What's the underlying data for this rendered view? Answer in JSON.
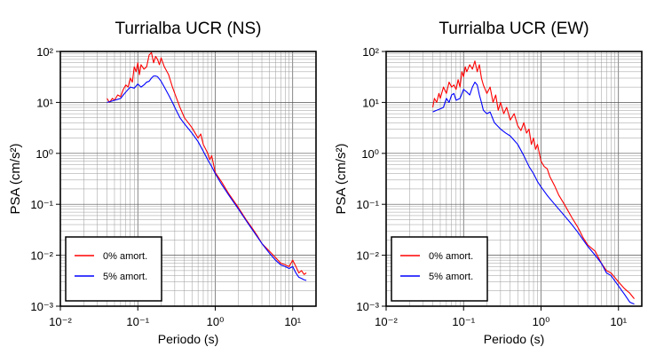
{
  "chart_data": [
    {
      "type": "line",
      "title": "Turrialba UCR (NS)",
      "xlabel": "Periodo (s)",
      "ylabel": "PSA (cm/s²)",
      "xscale": "log",
      "yscale": "log",
      "xlim": [
        0.01,
        20
      ],
      "ylim": [
        0.001,
        100
      ],
      "x_ticks": [
        "10⁻²",
        "10⁻¹",
        "10⁰",
        "10¹"
      ],
      "y_ticks": [
        "10⁻³",
        "10⁻²",
        "10⁻¹",
        "10⁰",
        "10¹",
        "10²"
      ],
      "grid": true,
      "legend_position": "bottom-left",
      "series": [
        {
          "name": "0% amort.",
          "color": "#ff0000",
          "points": [
            [
              0.04,
              12
            ],
            [
              0.043,
              10
            ],
            [
              0.047,
              12
            ],
            [
              0.05,
              11
            ],
            [
              0.055,
              14
            ],
            [
              0.06,
              13
            ],
            [
              0.065,
              18
            ],
            [
              0.07,
              22
            ],
            [
              0.075,
              20
            ],
            [
              0.08,
              30
            ],
            [
              0.085,
              25
            ],
            [
              0.09,
              50
            ],
            [
              0.095,
              40
            ],
            [
              0.1,
              60
            ],
            [
              0.105,
              35
            ],
            [
              0.11,
              55
            ],
            [
              0.12,
              45
            ],
            [
              0.13,
              50
            ],
            [
              0.14,
              85
            ],
            [
              0.15,
              95
            ],
            [
              0.16,
              60
            ],
            [
              0.17,
              80
            ],
            [
              0.18,
              70
            ],
            [
              0.19,
              55
            ],
            [
              0.2,
              75
            ],
            [
              0.22,
              50
            ],
            [
              0.25,
              35
            ],
            [
              0.28,
              20
            ],
            [
              0.3,
              15
            ],
            [
              0.35,
              8
            ],
            [
              0.4,
              5
            ],
            [
              0.5,
              3.2
            ],
            [
              0.55,
              2.5
            ],
            [
              0.6,
              2.0
            ],
            [
              0.65,
              2.4
            ],
            [
              0.7,
              1.5
            ],
            [
              0.8,
              1.0
            ],
            [
              0.85,
              0.75
            ],
            [
              0.9,
              0.9
            ],
            [
              1.0,
              0.42
            ],
            [
              1.2,
              0.28
            ],
            [
              1.5,
              0.16
            ],
            [
              2.0,
              0.085
            ],
            [
              2.5,
              0.05
            ],
            [
              3.0,
              0.034
            ],
            [
              3.5,
              0.024
            ],
            [
              4.0,
              0.017
            ],
            [
              5.0,
              0.012
            ],
            [
              6.0,
              0.009
            ],
            [
              7.0,
              0.007
            ],
            [
              8.0,
              0.0065
            ],
            [
              9.0,
              0.006
            ],
            [
              10,
              0.008
            ],
            [
              11,
              0.006
            ],
            [
              12,
              0.0045
            ],
            [
              13,
              0.005
            ],
            [
              14,
              0.0042
            ],
            [
              15,
              0.0045
            ]
          ]
        },
        {
          "name": "5% amort.",
          "color": "#0000ff",
          "points": [
            [
              0.04,
              10
            ],
            [
              0.045,
              10.5
            ],
            [
              0.05,
              11
            ],
            [
              0.055,
              11.5
            ],
            [
              0.06,
              12
            ],
            [
              0.065,
              14
            ],
            [
              0.07,
              16
            ],
            [
              0.075,
              18
            ],
            [
              0.08,
              20
            ],
            [
              0.09,
              19
            ],
            [
              0.1,
              23
            ],
            [
              0.11,
              20
            ],
            [
              0.12,
              22
            ],
            [
              0.13,
              25
            ],
            [
              0.14,
              26
            ],
            [
              0.15,
              30
            ],
            [
              0.16,
              33
            ],
            [
              0.17,
              33
            ],
            [
              0.18,
              32
            ],
            [
              0.2,
              26
            ],
            [
              0.22,
              20
            ],
            [
              0.25,
              14
            ],
            [
              0.28,
              10
            ],
            [
              0.3,
              8
            ],
            [
              0.35,
              5
            ],
            [
              0.4,
              3.8
            ],
            [
              0.5,
              2.5
            ],
            [
              0.6,
              1.7
            ],
            [
              0.7,
              1.1
            ],
            [
              0.8,
              0.75
            ],
            [
              0.9,
              0.55
            ],
            [
              1.0,
              0.4
            ],
            [
              1.2,
              0.25
            ],
            [
              1.5,
              0.15
            ],
            [
              2.0,
              0.08
            ],
            [
              2.5,
              0.048
            ],
            [
              3.0,
              0.032
            ],
            [
              4.0,
              0.017
            ],
            [
              5.0,
              0.011
            ],
            [
              6.0,
              0.008
            ],
            [
              7.0,
              0.0065
            ],
            [
              8.0,
              0.006
            ],
            [
              9.0,
              0.0055
            ],
            [
              10,
              0.006
            ],
            [
              11,
              0.0045
            ],
            [
              12,
              0.0037
            ],
            [
              13,
              0.0035
            ],
            [
              14,
              0.0033
            ],
            [
              15,
              0.0032
            ]
          ]
        }
      ]
    },
    {
      "type": "line",
      "title": "Turrialba UCR (EW)",
      "xlabel": "Periodo (s)",
      "ylabel": "PSA (cm/s²)",
      "xscale": "log",
      "yscale": "log",
      "xlim": [
        0.01,
        20
      ],
      "ylim": [
        0.001,
        100
      ],
      "x_ticks": [
        "10⁻²",
        "10⁻¹",
        "10⁰",
        "10¹"
      ],
      "y_ticks": [
        "10⁻³",
        "10⁻²",
        "10⁻¹",
        "10⁰",
        "10¹",
        "10²"
      ],
      "grid": true,
      "legend_position": "bottom-left",
      "series": [
        {
          "name": "0% amort.",
          "color": "#ff0000",
          "points": [
            [
              0.04,
              8
            ],
            [
              0.042,
              12
            ],
            [
              0.045,
              10
            ],
            [
              0.048,
              15
            ],
            [
              0.05,
              12
            ],
            [
              0.055,
              20
            ],
            [
              0.06,
              15
            ],
            [
              0.065,
              25
            ],
            [
              0.07,
              20
            ],
            [
              0.075,
              22
            ],
            [
              0.08,
              18
            ],
            [
              0.085,
              28
            ],
            [
              0.09,
              20
            ],
            [
              0.095,
              40
            ],
            [
              0.1,
              32
            ],
            [
              0.105,
              50
            ],
            [
              0.11,
              40
            ],
            [
              0.12,
              55
            ],
            [
              0.13,
              45
            ],
            [
              0.14,
              65
            ],
            [
              0.15,
              40
            ],
            [
              0.16,
              55
            ],
            [
              0.17,
              30
            ],
            [
              0.18,
              22
            ],
            [
              0.2,
              15
            ],
            [
              0.22,
              20
            ],
            [
              0.24,
              10
            ],
            [
              0.26,
              14
            ],
            [
              0.28,
              7
            ],
            [
              0.3,
              10
            ],
            [
              0.33,
              6
            ],
            [
              0.36,
              8
            ],
            [
              0.4,
              4.5
            ],
            [
              0.45,
              6
            ],
            [
              0.5,
              3.5
            ],
            [
              0.55,
              2.8
            ],
            [
              0.6,
              4
            ],
            [
              0.65,
              2.5
            ],
            [
              0.7,
              3
            ],
            [
              0.75,
              1.5
            ],
            [
              0.8,
              2.0
            ],
            [
              0.85,
              1.2
            ],
            [
              0.9,
              1.5
            ],
            [
              1.0,
              0.7
            ],
            [
              1.1,
              0.55
            ],
            [
              1.2,
              0.5
            ],
            [
              1.3,
              0.35
            ],
            [
              1.5,
              0.23
            ],
            [
              1.7,
              0.15
            ],
            [
              2.0,
              0.1
            ],
            [
              2.5,
              0.055
            ],
            [
              3.0,
              0.035
            ],
            [
              3.5,
              0.022
            ],
            [
              4.0,
              0.016
            ],
            [
              5.0,
              0.012
            ],
            [
              6.0,
              0.007
            ],
            [
              7.0,
              0.005
            ],
            [
              8.0,
              0.0045
            ],
            [
              10,
              0.003
            ],
            [
              12,
              0.0022
            ],
            [
              14,
              0.0018
            ],
            [
              16,
              0.0014
            ]
          ]
        },
        {
          "name": "5% amort.",
          "color": "#0000ff",
          "points": [
            [
              0.04,
              6.5
            ],
            [
              0.045,
              7
            ],
            [
              0.05,
              7.5
            ],
            [
              0.055,
              8
            ],
            [
              0.06,
              12
            ],
            [
              0.065,
              10
            ],
            [
              0.07,
              14
            ],
            [
              0.075,
              15
            ],
            [
              0.08,
              11
            ],
            [
              0.09,
              12
            ],
            [
              0.1,
              18
            ],
            [
              0.11,
              16
            ],
            [
              0.12,
              14
            ],
            [
              0.13,
              20
            ],
            [
              0.14,
              25
            ],
            [
              0.15,
              22
            ],
            [
              0.16,
              14
            ],
            [
              0.17,
              10
            ],
            [
              0.18,
              7
            ],
            [
              0.2,
              6
            ],
            [
              0.22,
              6.5
            ],
            [
              0.25,
              4
            ],
            [
              0.3,
              3.0
            ],
            [
              0.35,
              2.5
            ],
            [
              0.4,
              2.2
            ],
            [
              0.45,
              1.8
            ],
            [
              0.5,
              1.5
            ],
            [
              0.6,
              0.9
            ],
            [
              0.7,
              0.55
            ],
            [
              0.8,
              0.4
            ],
            [
              0.9,
              0.28
            ],
            [
              1.0,
              0.22
            ],
            [
              1.2,
              0.15
            ],
            [
              1.5,
              0.1
            ],
            [
              2.0,
              0.06
            ],
            [
              2.5,
              0.04
            ],
            [
              3.0,
              0.028
            ],
            [
              3.5,
              0.02
            ],
            [
              4.0,
              0.015
            ],
            [
              5.0,
              0.01
            ],
            [
              6.0,
              0.007
            ],
            [
              7.0,
              0.0045
            ],
            [
              8.0,
              0.004
            ],
            [
              10,
              0.0025
            ],
            [
              12,
              0.0017
            ],
            [
              14,
              0.0012
            ],
            [
              16,
              0.0011
            ]
          ]
        }
      ]
    }
  ]
}
